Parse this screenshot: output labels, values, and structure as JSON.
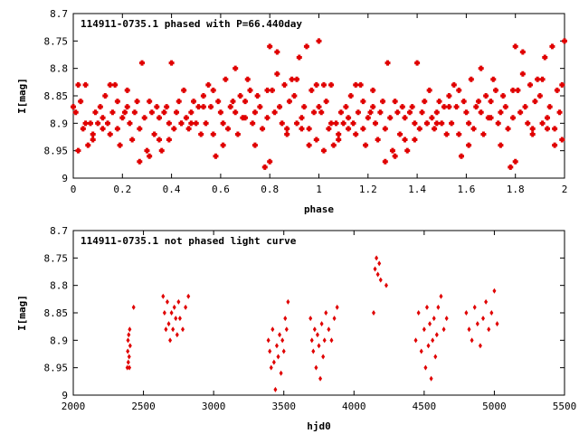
{
  "chart_data": [
    {
      "type": "scatter",
      "title": "114911-0735.1 phased with P=66.440day",
      "xlabel": "phase",
      "ylabel": "I[mag]",
      "xlim": [
        0,
        2
      ],
      "ylim": [
        9,
        8.7
      ],
      "y_inverted": true,
      "x_ticks": [
        "0",
        "0.2",
        "0.4",
        "0.6",
        "0.8",
        "1",
        "1.2",
        "1.4",
        "1.6",
        "1.8",
        "2"
      ],
      "x_tick_values": [
        0,
        0.2,
        0.4,
        0.6,
        0.8,
        1.0,
        1.2,
        1.4,
        1.6,
        1.8,
        2.0
      ],
      "y_ticks": [
        "8.7",
        "8.75",
        "8.8",
        "8.85",
        "8.9",
        "8.95",
        "9"
      ],
      "y_tick_values": [
        8.7,
        8.75,
        8.8,
        8.85,
        8.9,
        8.95,
        9.0
      ],
      "marker_color": "#e00000",
      "marker": "plus",
      "series": [
        {
          "x": [
            0.0,
            0.01,
            0.02,
            0.03,
            0.04,
            0.05,
            0.06,
            0.07,
            0.08,
            0.09,
            0.1,
            0.11,
            0.12,
            0.13,
            0.14,
            0.15,
            0.16,
            0.17,
            0.18,
            0.19,
            0.2,
            0.21,
            0.22,
            0.23,
            0.24,
            0.25,
            0.26,
            0.27,
            0.28,
            0.29,
            0.3,
            0.31,
            0.32,
            0.33,
            0.34,
            0.35,
            0.36,
            0.37,
            0.38,
            0.39,
            0.4,
            0.41,
            0.42,
            0.43,
            0.44,
            0.45,
            0.46,
            0.47,
            0.48,
            0.49,
            0.5,
            0.51,
            0.52,
            0.53,
            0.54,
            0.55,
            0.56,
            0.57,
            0.58,
            0.59,
            0.6,
            0.61,
            0.62,
            0.63,
            0.64,
            0.65,
            0.66,
            0.67,
            0.68,
            0.69,
            0.7,
            0.71,
            0.72,
            0.73,
            0.74,
            0.75,
            0.76,
            0.77,
            0.78,
            0.79,
            0.8,
            0.81,
            0.82,
            0.83,
            0.84,
            0.85,
            0.86,
            0.87,
            0.88,
            0.89,
            0.9,
            0.91,
            0.92,
            0.93,
            0.94,
            0.95,
            0.96,
            0.97,
            0.98,
            0.99,
            1.0,
            0.02,
            0.05,
            0.08,
            0.12,
            0.15,
            0.18,
            0.22,
            0.27,
            0.31,
            0.35,
            0.39,
            0.44,
            0.48,
            0.53,
            0.57,
            0.61,
            0.66,
            0.7,
            0.74,
            0.79,
            0.8,
            0.83,
            0.87,
            0.91,
            0.93,
            0.96,
            0.99
          ],
          "y": [
            8.87,
            8.88,
            8.83,
            8.86,
            8.91,
            8.83,
            8.94,
            8.9,
            8.92,
            8.88,
            8.9,
            8.87,
            8.89,
            8.85,
            8.9,
            8.92,
            8.88,
            8.83,
            8.91,
            8.94,
            8.89,
            8.88,
            8.87,
            8.9,
            8.93,
            8.88,
            8.86,
            8.91,
            8.79,
            8.89,
            8.95,
            8.86,
            8.88,
            8.92,
            8.87,
            8.89,
            8.95,
            8.88,
            8.87,
            8.9,
            8.79,
            8.91,
            8.88,
            8.86,
            8.9,
            8.84,
            8.89,
            8.91,
            8.88,
            8.86,
            8.9,
            8.87,
            8.92,
            8.85,
            8.9,
            8.83,
            8.87,
            8.92,
            8.96,
            8.86,
            8.88,
            8.9,
            8.82,
            8.91,
            8.87,
            8.86,
            8.8,
            8.92,
            8.85,
            8.89,
            8.86,
            8.82,
            8.84,
            8.9,
            8.88,
            8.85,
            8.87,
            8.91,
            8.98,
            8.89,
            8.76,
            8.84,
            8.88,
            8.77,
            8.87,
            8.9,
            8.83,
            8.91,
            8.86,
            8.82,
            8.85,
            8.9,
            8.78,
            8.89,
            8.87,
            8.76,
            8.91,
            8.84,
            8.88,
            8.93,
            8.75,
            8.95,
            8.9,
            8.93,
            8.91,
            8.83,
            8.86,
            8.84,
            8.97,
            8.96,
            8.93,
            8.93,
            8.9,
            8.9,
            8.87,
            8.84,
            8.94,
            8.88,
            8.89,
            8.94,
            8.84,
            8.97,
            8.81,
            8.92,
            8.82,
            8.91,
            8.94,
            8.83
          ],
          "repeat_period": 1.0
        }
      ]
    },
    {
      "type": "scatter",
      "title": "114911-0735.1 not phased light curve",
      "xlabel": "hjd0",
      "ylabel": "I[mag]",
      "xlim": [
        2000,
        5500
      ],
      "ylim": [
        9,
        8.7
      ],
      "y_inverted": true,
      "x_ticks": [
        "2000",
        "2500",
        "3000",
        "3500",
        "4000",
        "4500",
        "5000",
        "5500"
      ],
      "x_tick_values": [
        2000,
        2500,
        3000,
        3500,
        4000,
        4500,
        5000,
        5500
      ],
      "y_ticks": [
        "8.7",
        "8.75",
        "8.8",
        "8.85",
        "8.9",
        "8.95",
        "9"
      ],
      "y_tick_values": [
        8.7,
        8.75,
        8.8,
        8.85,
        8.9,
        8.95,
        9.0
      ],
      "marker_color": "#e00000",
      "marker": "diamond",
      "series": [
        {
          "x": [
            2385,
            2388,
            2390,
            2392,
            2395,
            2398,
            2400,
            2402,
            2405,
            2430,
            2640,
            2650,
            2660,
            2670,
            2680,
            2690,
            2700,
            2710,
            2720,
            2730,
            2740,
            2750,
            2760,
            2780,
            2800,
            2820,
            3390,
            3400,
            3410,
            3420,
            3430,
            3440,
            3450,
            3460,
            3470,
            3480,
            3490,
            3500,
            3510,
            3520,
            3530,
            3690,
            3700,
            3710,
            3720,
            3730,
            3740,
            3750,
            3760,
            3770,
            3780,
            3790,
            3800,
            3820,
            3840,
            3860,
            3880,
            4140,
            4150,
            4160,
            4170,
            4180,
            4190,
            4230,
            4440,
            4460,
            4480,
            4500,
            4510,
            4520,
            4530,
            4540,
            4550,
            4560,
            4570,
            4580,
            4590,
            4600,
            4620,
            4640,
            4660,
            4800,
            4820,
            4840,
            4860,
            4880,
            4900,
            4920,
            4940,
            4960,
            4980,
            5000,
            5020
          ],
          "y": [
            8.95,
            8.92,
            8.9,
            8.94,
            8.89,
            8.93,
            8.95,
            8.88,
            8.91,
            8.84,
            8.82,
            8.85,
            8.88,
            8.83,
            8.87,
            8.9,
            8.85,
            8.88,
            8.84,
            8.86,
            8.89,
            8.83,
            8.86,
            8.88,
            8.84,
            8.82,
            8.9,
            8.92,
            8.95,
            8.88,
            8.94,
            8.99,
            8.91,
            8.93,
            8.89,
            8.96,
            8.9,
            8.92,
            8.86,
            8.88,
            8.83,
            8.86,
            8.9,
            8.92,
            8.88,
            8.95,
            8.89,
            8.91,
            8.97,
            8.87,
            8.93,
            8.9,
            8.85,
            8.88,
            8.9,
            8.86,
            8.84,
            8.85,
            8.77,
            8.75,
            8.78,
            8.76,
            8.79,
            8.8,
            8.9,
            8.85,
            8.92,
            8.88,
            8.95,
            8.84,
            8.91,
            8.87,
            8.97,
            8.9,
            8.86,
            8.93,
            8.89,
            8.84,
            8.82,
            8.88,
            8.86,
            8.85,
            8.88,
            8.9,
            8.84,
            8.87,
            8.91,
            8.86,
            8.83,
            8.88,
            8.85,
            8.81,
            8.87
          ]
        }
      ]
    }
  ]
}
